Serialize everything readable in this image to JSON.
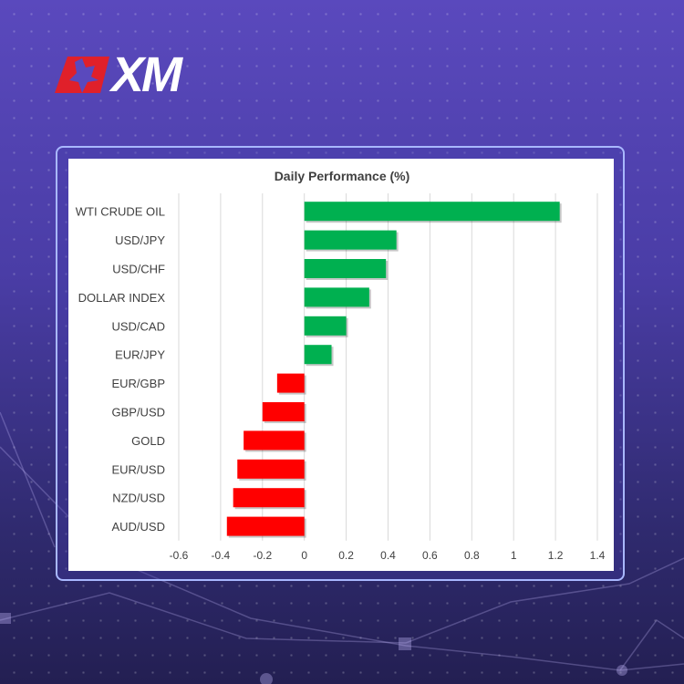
{
  "brand": {
    "logo_text": "XM",
    "colors": {
      "accent": "#e0202a",
      "text": "#ffffff"
    }
  },
  "chart_data": {
    "type": "bar",
    "orientation": "horizontal",
    "title": "Daily Performance (%)",
    "categories": [
      "WTI CRUDE OIL",
      "USD/JPY",
      "USD/CHF",
      "DOLLAR INDEX",
      "USD/CAD",
      "EUR/JPY",
      "EUR/GBP",
      "GBP/USD",
      "GOLD",
      "EUR/USD",
      "NZD/USD",
      "AUD/USD"
    ],
    "values": [
      1.22,
      0.44,
      0.39,
      0.31,
      0.2,
      0.13,
      -0.13,
      -0.2,
      -0.29,
      -0.32,
      -0.34,
      -0.37
    ],
    "xlim": [
      -0.6,
      1.4
    ],
    "xticks": [
      "-0.6",
      "-0.4",
      "-0.2",
      "0",
      "0.2",
      "0.4",
      "0.6",
      "0.8",
      "1",
      "1.2",
      "1.4"
    ],
    "grid": true,
    "legend": "none",
    "colors": {
      "positive": "#00b050",
      "negative": "#ff0000",
      "grid": "#d9d9d9"
    }
  }
}
